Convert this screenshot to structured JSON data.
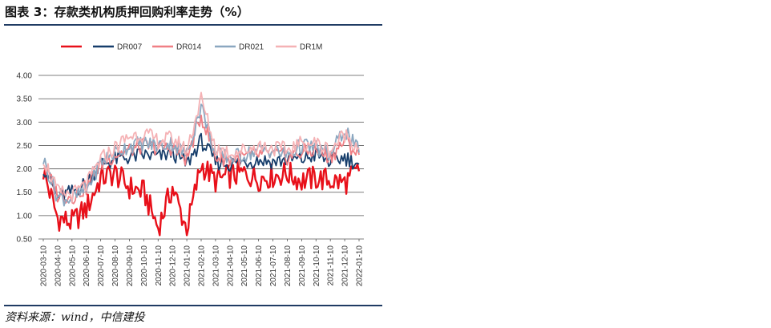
{
  "header": {
    "title": "图表 3：存款类机构质押回购利率走势（%）"
  },
  "footer": {
    "source": "资料来源：wind，中信建投"
  },
  "chart_data": {
    "type": "line",
    "title": "存款类机构质押回购利率走势（%）",
    "ylim": [
      0.5,
      4.0
    ],
    "yticks": [
      "4.00",
      "3.50",
      "3.00",
      "2.50",
      "2.00",
      "1.50",
      "1.00",
      "0.50"
    ],
    "categories": [
      "2020-03-10",
      "2020-04-10",
      "2020-05-10",
      "2020-06-10",
      "2020-07-10",
      "2020-08-10",
      "2020-09-10",
      "2020-10-10",
      "2020-11-10",
      "2020-12-10",
      "2021-01-10",
      "2021-02-10",
      "2021-03-10",
      "2021-04-10",
      "2021-05-10",
      "2021-06-10",
      "2021-07-10",
      "2021-08-10",
      "2021-09-10",
      "2021-10-10",
      "2021-11-10",
      "2021-12-10",
      "2022-01-10"
    ],
    "legend_position": "top",
    "series": [
      {
        "name": "",
        "color": "#e8101a",
        "values": [
          1.95,
          0.95,
          0.85,
          1.15,
          1.8,
          1.9,
          1.6,
          1.5,
          0.75,
          1.6,
          0.7,
          2.1,
          1.75,
          1.85,
          1.9,
          1.8,
          1.85,
          1.9,
          1.75,
          1.8,
          1.75,
          1.7,
          1.95
        ]
      },
      {
        "name": "DR007",
        "color": "#163d6b",
        "values": [
          2.05,
          1.4,
          1.5,
          1.7,
          2.1,
          2.2,
          2.25,
          2.3,
          2.25,
          2.35,
          2.1,
          2.6,
          2.15,
          2.1,
          2.15,
          2.2,
          2.15,
          2.2,
          2.2,
          2.3,
          2.15,
          2.25,
          2.1
        ]
      },
      {
        "name": "DR014",
        "color": "#f07f85",
        "values": [
          2.1,
          1.45,
          1.4,
          1.6,
          2.1,
          2.3,
          2.4,
          2.5,
          2.45,
          2.45,
          2.2,
          3.15,
          2.25,
          2.2,
          2.25,
          2.3,
          2.3,
          2.25,
          2.35,
          2.4,
          2.25,
          2.6,
          2.3
        ]
      },
      {
        "name": "DR021",
        "color": "#8ba7c0",
        "values": [
          2.2,
          1.4,
          1.35,
          1.55,
          2.15,
          2.35,
          2.5,
          2.55,
          2.5,
          2.55,
          2.3,
          3.35,
          2.3,
          2.25,
          2.3,
          2.4,
          2.4,
          2.3,
          2.5,
          2.45,
          2.3,
          2.85,
          2.35
        ]
      },
      {
        "name": "DR1M",
        "color": "#f5b2b5",
        "values": [
          2.25,
          1.5,
          1.45,
          1.65,
          2.2,
          2.45,
          2.7,
          2.75,
          2.6,
          2.65,
          2.4,
          3.5,
          2.45,
          2.35,
          2.4,
          2.5,
          2.45,
          2.4,
          2.55,
          2.55,
          2.4,
          2.75,
          2.45
        ]
      }
    ]
  }
}
